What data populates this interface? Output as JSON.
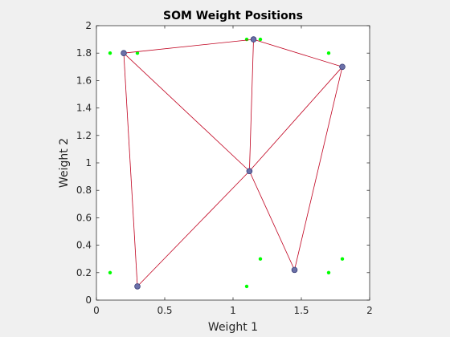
{
  "figure": {
    "background": "#f0f0f0",
    "axes_background": "#ffffff"
  },
  "chart_data": {
    "type": "scatter",
    "title": "SOM Weight Positions",
    "xlabel": "Weight 1",
    "ylabel": "Weight 2",
    "xlim": [
      0,
      2
    ],
    "ylim": [
      0,
      2
    ],
    "xticks": [
      "0",
      "0.5",
      "1",
      "1.5",
      "2"
    ],
    "yticks": [
      "0",
      "0.2",
      "0.4",
      "0.6",
      "0.8",
      "1",
      "1.2",
      "1.4",
      "1.6",
      "1.8",
      "2"
    ],
    "grid": false,
    "box": true,
    "series": [
      {
        "role": "input-samples",
        "color": "#00ff00",
        "points": [
          [
            0.1,
            1.8
          ],
          [
            0.3,
            1.8
          ],
          [
            1.1,
            1.9
          ],
          [
            1.2,
            1.9
          ],
          [
            1.7,
            1.8
          ],
          [
            0.1,
            0.2
          ],
          [
            1.2,
            0.3
          ],
          [
            1.1,
            0.1
          ],
          [
            1.7,
            0.2
          ],
          [
            1.8,
            0.3
          ]
        ]
      },
      {
        "role": "neuron-weights",
        "color": "#6b70a8",
        "edge_color": "#3a3f78",
        "points": [
          [
            0.2,
            1.8
          ],
          [
            1.15,
            1.9
          ],
          [
            1.8,
            1.7
          ],
          [
            1.12,
            0.94
          ],
          [
            0.3,
            0.1
          ],
          [
            1.45,
            0.22
          ]
        ]
      }
    ],
    "connections": {
      "color": "#c0001e",
      "pairs": [
        [
          0,
          1
        ],
        [
          1,
          2
        ],
        [
          0,
          4
        ],
        [
          0,
          3
        ],
        [
          1,
          3
        ],
        [
          2,
          3
        ],
        [
          2,
          5
        ],
        [
          3,
          4
        ],
        [
          3,
          5
        ]
      ]
    }
  }
}
